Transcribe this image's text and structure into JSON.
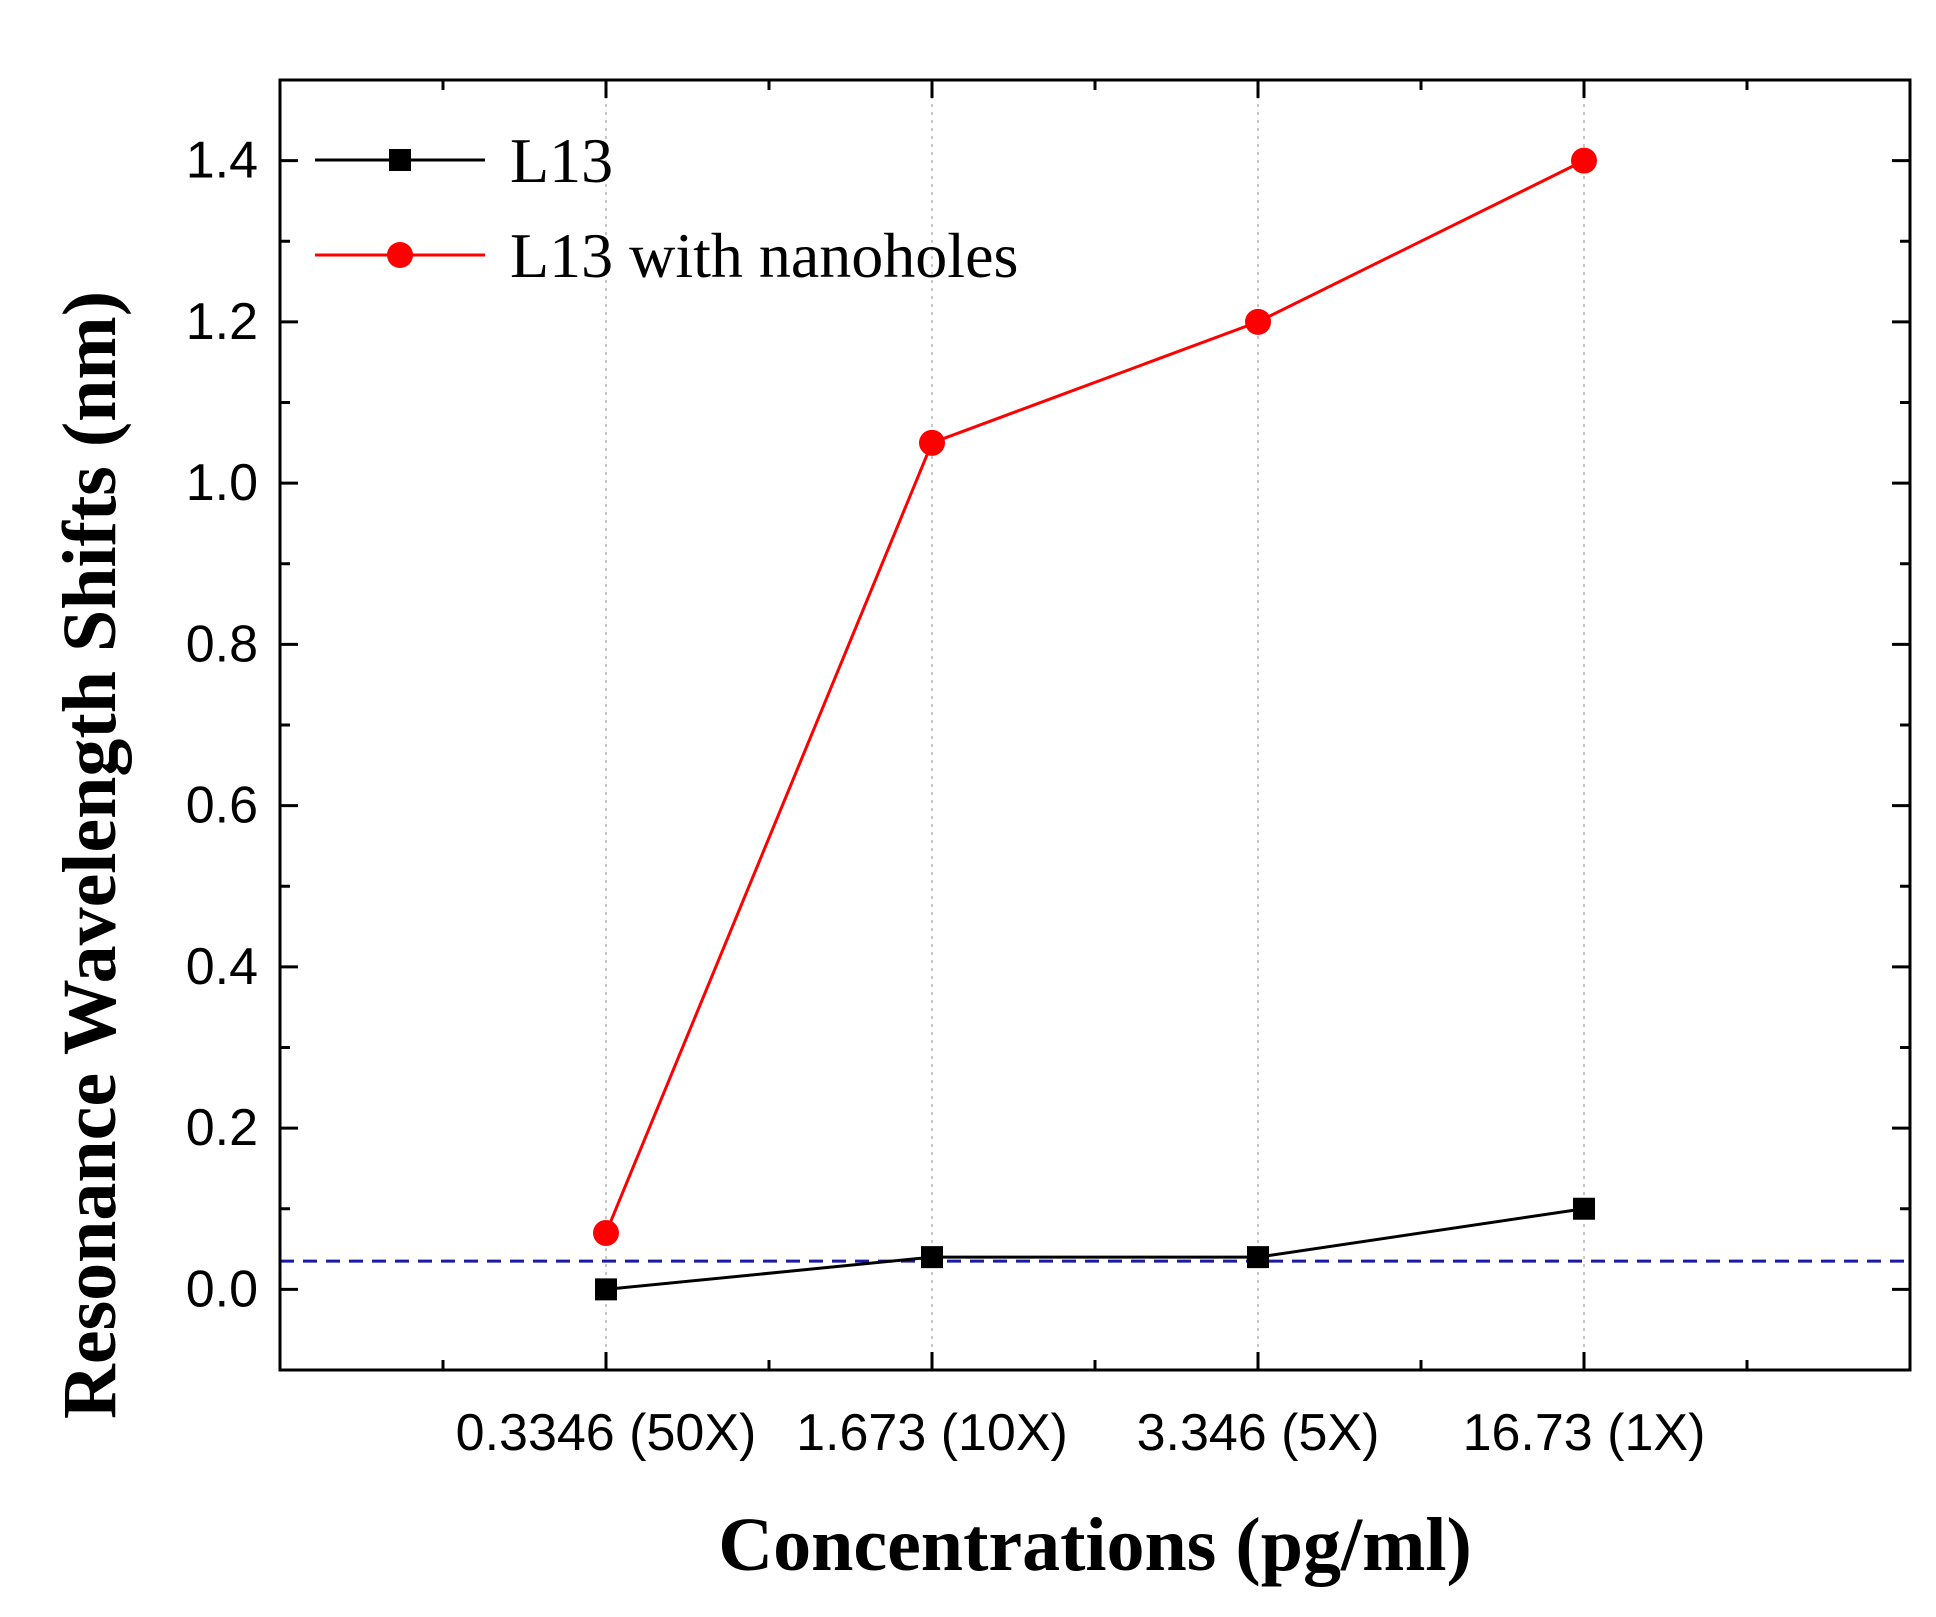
{
  "chart_data": {
    "type": "line",
    "title": "",
    "xlabel": "Concentrations (pg/ml)",
    "ylabel": "Resonance Wavelength Shifts (nm)",
    "categories": [
      "0.3346 (50X)",
      "1.673 (10X)",
      "3.346 (5X)",
      "16.73 (1X)"
    ],
    "ylim": [
      -0.1,
      1.5
    ],
    "yticks": [
      0.0,
      0.2,
      0.4,
      0.6,
      0.8,
      1.0,
      1.2,
      1.4
    ],
    "ytick_labels": [
      "0.0",
      "0.2",
      "0.4",
      "0.6",
      "0.8",
      "1.0",
      "1.2",
      "1.4"
    ],
    "grid": "vertical dotted at categories",
    "legend_position": "top-left",
    "reference_line": {
      "y": 0.035,
      "style": "dashed",
      "color": "#1a1aa8"
    },
    "series": [
      {
        "name": "L13",
        "color": "#000000",
        "marker": "square",
        "values": [
          0.0,
          0.04,
          0.04,
          0.1
        ]
      },
      {
        "name": "L13 with nanoholes",
        "color": "#ff0000",
        "marker": "circle",
        "values": [
          0.07,
          1.05,
          1.2,
          1.4
        ]
      }
    ]
  }
}
